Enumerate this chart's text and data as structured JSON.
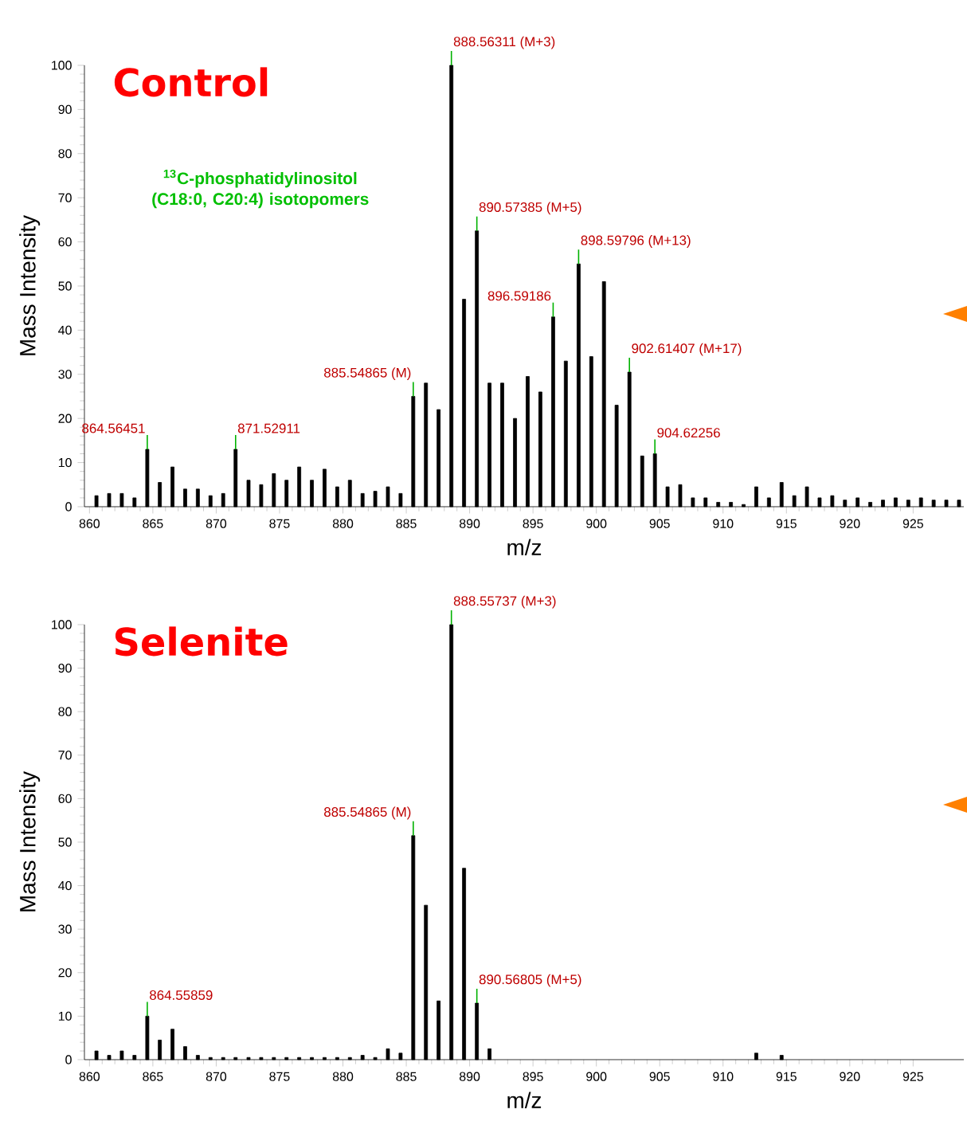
{
  "chart_data": [
    {
      "type": "bar",
      "title": "Control",
      "xlabel": "m/z",
      "ylabel": "Mass Intensity",
      "color": "#000000",
      "x": [
        860.55,
        861.55,
        862.55,
        863.55,
        864.56,
        865.55,
        866.55,
        867.55,
        868.55,
        869.55,
        870.55,
        871.53,
        872.55,
        873.55,
        874.55,
        875.55,
        876.55,
        877.55,
        878.55,
        879.55,
        880.55,
        881.55,
        882.55,
        883.55,
        884.55,
        885.55,
        886.55,
        887.55,
        888.56,
        889.56,
        890.57,
        891.57,
        892.57,
        893.58,
        894.58,
        895.58,
        896.59,
        897.59,
        898.6,
        899.6,
        900.6,
        901.6,
        902.61,
        903.62,
        904.62,
        905.62,
        906.62,
        907.62,
        908.62,
        909.62,
        910.62,
        911.62,
        912.62,
        913.62,
        914.62,
        915.62,
        916.62,
        917.62,
        918.62,
        919.62,
        920.62,
        921.62,
        922.62,
        923.62,
        924.62,
        925.62,
        926.62,
        927.62,
        928.62
      ],
      "values": [
        2.5,
        3,
        3,
        2,
        13,
        5.5,
        9,
        4,
        4,
        2.5,
        3,
        13,
        6,
        5,
        7.5,
        6,
        9,
        6,
        8.5,
        4.5,
        6,
        3,
        3.5,
        4.5,
        3,
        25,
        28,
        22,
        100,
        47,
        62.5,
        28,
        28,
        20,
        29.5,
        26,
        43,
        33,
        55,
        34,
        51,
        23,
        30.5,
        11.5,
        12,
        4.5,
        5,
        2,
        2,
        1,
        1,
        0.5,
        4.5,
        2,
        5.5,
        2.5,
        4.5,
        2,
        2.5,
        1.5,
        2,
        1,
        1.5,
        2,
        1.5,
        2,
        1.5,
        1.5,
        1.5
      ],
      "xlim": [
        859.6,
        929
      ],
      "ylim": [
        0,
        100
      ],
      "xticks": [
        860,
        865,
        870,
        875,
        880,
        885,
        890,
        895,
        900,
        905,
        910,
        915,
        920,
        925
      ],
      "yticks": [
        0,
        10,
        20,
        30,
        40,
        50,
        60,
        70,
        80,
        90,
        100
      ],
      "annotations": [
        "$^{13}$C-phosphatidylinositol (C18:0, C20:4) isotopomers",
        {
          "text": "888.56311 (M+3)",
          "x": 888.56,
          "y": 100
        },
        {
          "text": "890.57385 (M+5)",
          "x": 890.57,
          "y": 62.5
        },
        {
          "text": "898.59796 (M+13)",
          "x": 898.6,
          "y": 55
        },
        {
          "text": "902.61407 (M+17)",
          "x": 902.61,
          "y": 30.5
        },
        {
          "text": "885.54865 (M)",
          "x": 885.55,
          "y": 25
        },
        {
          "text": "864.56451",
          "x": 864.56,
          "y": 13
        },
        {
          "text": "871.52911",
          "x": 871.53,
          "y": 13
        },
        {
          "text": "896.59186",
          "x": 896.59,
          "y": 43
        },
        {
          "text": "904.62256",
          "x": 904.62,
          "y": 12
        }
      ]
    },
    {
      "type": "bar",
      "title": "Selenite",
      "xlabel": "m/z",
      "ylabel": "Mass Intensity",
      "color": "#000000",
      "x": [
        860.55,
        861.55,
        862.55,
        863.55,
        864.56,
        865.55,
        866.55,
        867.55,
        868.55,
        869.55,
        870.55,
        871.53,
        872.55,
        873.55,
        874.55,
        875.55,
        876.55,
        877.55,
        878.55,
        879.55,
        880.55,
        881.55,
        882.55,
        883.55,
        884.55,
        885.55,
        886.55,
        887.55,
        888.56,
        889.56,
        890.57,
        891.57,
        912.62,
        914.62
      ],
      "values": [
        2,
        1,
        2,
        1,
        10,
        4.5,
        7,
        3,
        1,
        0.5,
        0.5,
        0.5,
        0.5,
        0.5,
        0.5,
        0.5,
        0.5,
        0.5,
        0.5,
        0.5,
        0.5,
        1,
        0.5,
        2.5,
        1.5,
        51.5,
        35.5,
        13.5,
        100,
        44,
        13,
        2.5,
        1.5,
        1
      ],
      "xlim": [
        859.6,
        929
      ],
      "ylim": [
        0,
        100
      ],
      "xticks": [
        860,
        865,
        870,
        875,
        880,
        885,
        890,
        895,
        900,
        905,
        910,
        915,
        920,
        925
      ],
      "yticks": [
        0,
        10,
        20,
        30,
        40,
        50,
        60,
        70,
        80,
        90,
        100
      ],
      "annotations": [
        {
          "text": "888.55737 (M+3)",
          "x": 888.56,
          "y": 100
        },
        {
          "text": "885.54865 (M)",
          "x": 885.55,
          "y": 51.5
        },
        {
          "text": "890.56805 (M+5)",
          "x": 890.57,
          "y": 13
        },
        {
          "text": "864.55859",
          "x": 864.56,
          "y": 10
        }
      ]
    }
  ]
}
